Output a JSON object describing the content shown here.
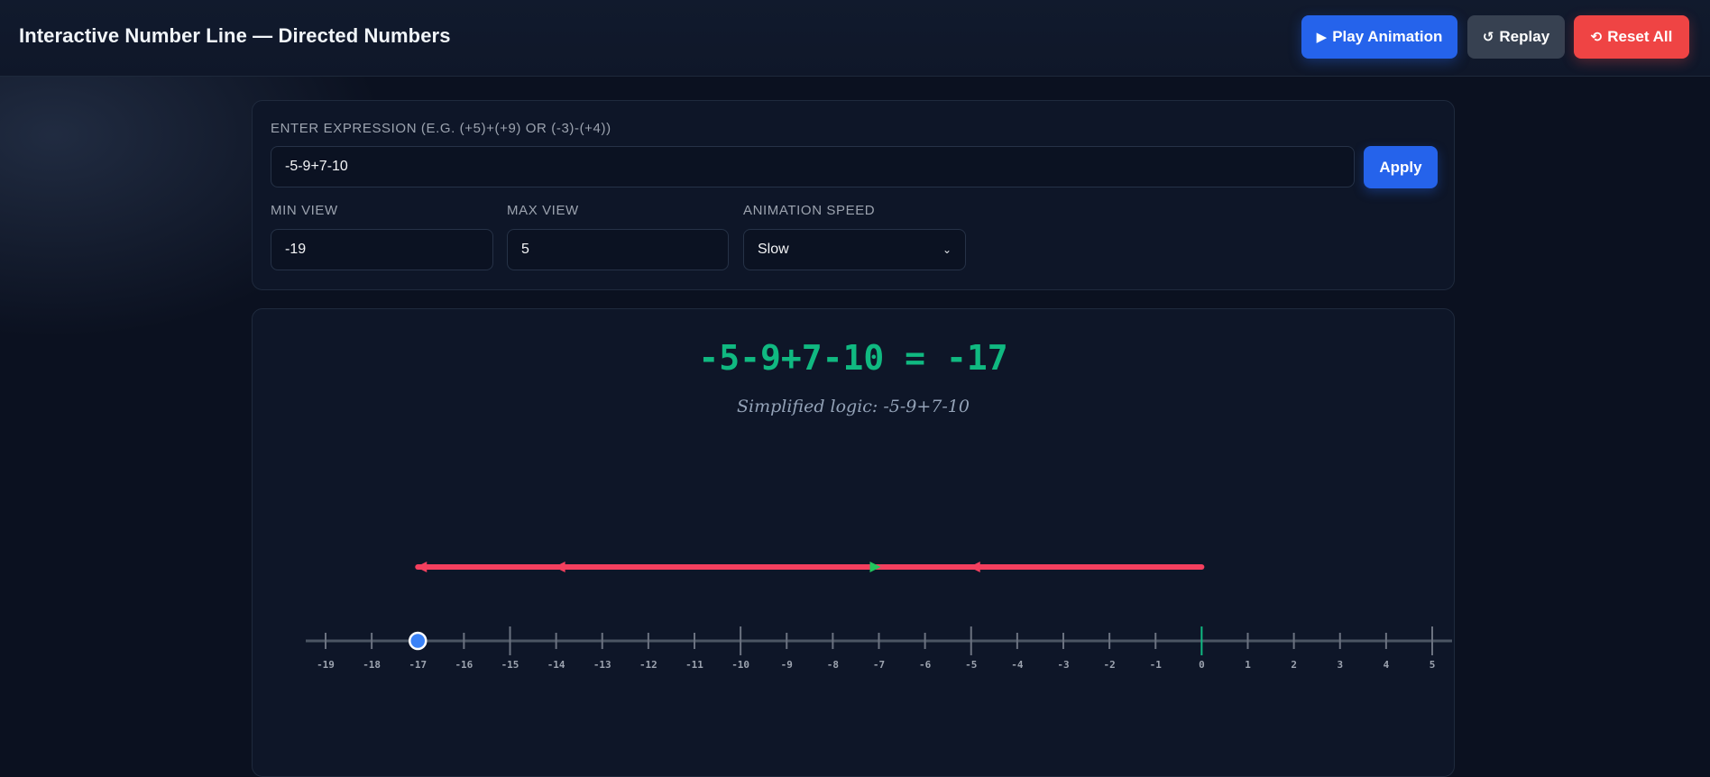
{
  "header": {
    "title": "Interactive Number Line — Directed Numbers",
    "play_label": "Play Animation",
    "play_icon": "play-icon",
    "replay_label": "Replay",
    "replay_icon": "replay-icon",
    "reset_label": "Reset All",
    "reset_icon": "reset-icon"
  },
  "controls": {
    "expression_label": "Enter expression (e.g. (+5)+(+9) or (-3)-(+4))",
    "expression_value": "-5-9+7-10",
    "apply_label": "Apply",
    "min_label": "Min view",
    "min_value": "-19",
    "max_label": "Max view",
    "max_value": "5",
    "speed_label": "Animation speed",
    "speed_value": "Slow"
  },
  "result": {
    "equation": "-5-9+7-10 = -17",
    "logic": "Simplified logic: -5-9+7-10"
  },
  "number_line": {
    "min": -19,
    "max": 5,
    "zero_color": "#10b981",
    "marker_value": -17,
    "marker_color": "#3b82f6",
    "steps": [
      {
        "from": 0,
        "to": -5,
        "color": "#f43f5e"
      },
      {
        "from": -5,
        "to": -14,
        "color": "#f43f5e"
      },
      {
        "from": -14,
        "to": -7,
        "color": "#22c55e"
      },
      {
        "from": -7,
        "to": -17,
        "color": "#f43f5e"
      }
    ]
  }
}
